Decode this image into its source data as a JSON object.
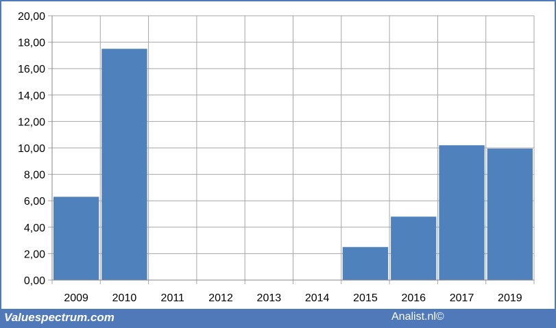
{
  "chart_data": {
    "type": "bar",
    "title": "",
    "xlabel": "",
    "ylabel": "",
    "categories": [
      "2009",
      "2010",
      "2011",
      "2012",
      "2013",
      "2014",
      "2015",
      "2016",
      "2017",
      "2019"
    ],
    "values": [
      6.3,
      17.5,
      0,
      0,
      0,
      0,
      2.5,
      4.8,
      10.2,
      9.95
    ],
    "ylim": [
      0,
      20
    ],
    "yticks": [
      "0,00",
      "2,00",
      "4,00",
      "6,00",
      "8,00",
      "10,00",
      "12,00",
      "14,00",
      "16,00",
      "18,00",
      "20,00"
    ],
    "grid": true,
    "bar_color": "#4f81bd",
    "grid_color": "#a6a6a6"
  },
  "footer": {
    "left": "Valuespectrum.com",
    "right": "Analist.nl©"
  },
  "colors": {
    "border": "#4f79b9",
    "footer_band": "#4f79b9"
  }
}
